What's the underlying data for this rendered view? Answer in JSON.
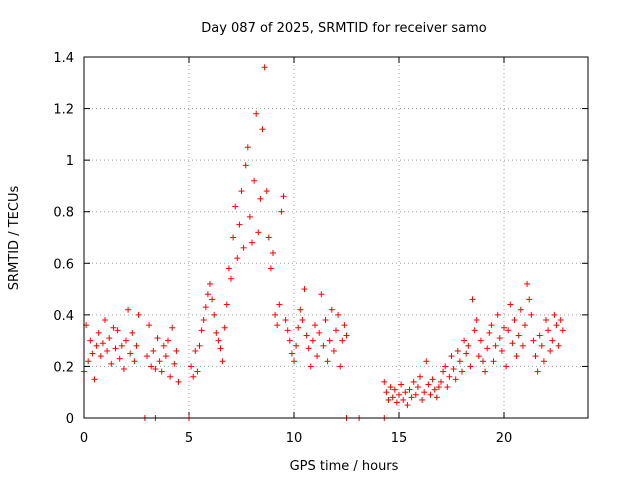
{
  "chart_data": {
    "type": "scatter",
    "title": "Day 087 of 2025, SRMTID for receiver samo",
    "xlabel": "GPS time / hours",
    "ylabel": "SRMTID / TECUs",
    "xlim": [
      0,
      24
    ],
    "ylim": [
      0,
      1.4
    ],
    "xticks": [
      0,
      5,
      10,
      15,
      20
    ],
    "yticks": [
      0,
      0.2,
      0.4,
      0.6,
      0.8,
      1.0,
      1.2,
      1.4
    ],
    "xtick_labels": [
      "0",
      "5",
      "10",
      "15",
      "20"
    ],
    "ytick_labels": [
      "0",
      "0.2",
      "0.4",
      "0.6",
      "0.8",
      "1",
      "1.2",
      "1.4"
    ],
    "grid": true,
    "marker": "+",
    "marker_color": "#ff0000",
    "series": [
      {
        "name": "SRMTID",
        "x": [
          0.0,
          0.1,
          0.2,
          0.3,
          0.4,
          0.5,
          0.6,
          0.7,
          0.8,
          0.9,
          1.0,
          1.1,
          1.2,
          1.3,
          1.4,
          1.5,
          1.6,
          1.7,
          1.8,
          1.9,
          2.0,
          2.1,
          2.2,
          2.3,
          2.4,
          2.5,
          2.6,
          3.0,
          3.1,
          3.2,
          3.3,
          3.4,
          3.5,
          3.6,
          3.7,
          3.8,
          3.9,
          4.0,
          4.1,
          4.2,
          4.3,
          4.4,
          4.5,
          5.1,
          5.2,
          5.3,
          5.4,
          5.5,
          5.6,
          5.7,
          5.8,
          5.9,
          6.0,
          6.1,
          6.2,
          6.3,
          6.4,
          6.5,
          6.6,
          6.7,
          6.8,
          6.9,
          7.0,
          7.1,
          7.2,
          7.3,
          7.4,
          7.5,
          7.6,
          7.7,
          7.8,
          7.9,
          8.0,
          8.1,
          8.2,
          8.3,
          8.4,
          8.5,
          8.6,
          8.7,
          8.8,
          8.9,
          9.0,
          9.1,
          9.2,
          9.3,
          9.4,
          9.5,
          9.6,
          9.7,
          9.8,
          9.9,
          10.0,
          10.1,
          10.2,
          10.3,
          10.4,
          10.5,
          10.6,
          10.7,
          10.8,
          10.9,
          11.0,
          11.1,
          11.2,
          11.3,
          11.4,
          11.5,
          11.6,
          11.7,
          11.8,
          11.9,
          12.0,
          12.1,
          12.2,
          12.3,
          12.4,
          12.5,
          14.3,
          14.4,
          14.5,
          14.6,
          14.7,
          14.8,
          14.9,
          15.0,
          15.1,
          15.2,
          15.3,
          15.4,
          15.5,
          15.6,
          15.7,
          15.8,
          15.9,
          16.0,
          16.1,
          16.2,
          16.3,
          16.4,
          16.5,
          16.6,
          16.7,
          16.8,
          16.9,
          17.0,
          17.1,
          17.2,
          17.3,
          17.4,
          17.5,
          17.6,
          17.7,
          17.8,
          17.9,
          18.0,
          18.1,
          18.2,
          18.3,
          18.4,
          18.5,
          18.6,
          18.7,
          18.8,
          18.9,
          19.0,
          19.1,
          19.2,
          19.3,
          19.4,
          19.5,
          19.6,
          19.7,
          19.8,
          19.9,
          20.0,
          20.1,
          20.2,
          20.3,
          20.4,
          20.5,
          20.6,
          20.7,
          20.8,
          20.9,
          21.0,
          21.1,
          21.2,
          21.3,
          21.4,
          21.5,
          21.6,
          21.7,
          21.8,
          21.9,
          22.0,
          22.1,
          22.2,
          22.3,
          22.4,
          22.5,
          22.6,
          22.7,
          22.8,
          2.9,
          3.4,
          5.0,
          12.5,
          13.1,
          14.3
        ],
        "y": [
          0.18,
          0.36,
          0.22,
          0.3,
          0.25,
          0.15,
          0.28,
          0.33,
          0.24,
          0.29,
          0.38,
          0.26,
          0.31,
          0.21,
          0.35,
          0.27,
          0.34,
          0.23,
          0.28,
          0.19,
          0.3,
          0.42,
          0.25,
          0.33,
          0.22,
          0.28,
          0.4,
          0.24,
          0.36,
          0.2,
          0.26,
          0.19,
          0.31,
          0.22,
          0.18,
          0.28,
          0.24,
          0.3,
          0.16,
          0.35,
          0.21,
          0.26,
          0.14,
          0.2,
          0.16,
          0.26,
          0.18,
          0.28,
          0.34,
          0.38,
          0.43,
          0.48,
          0.52,
          0.46,
          0.4,
          0.33,
          0.3,
          0.27,
          0.22,
          0.35,
          0.44,
          0.58,
          0.54,
          0.7,
          0.82,
          0.62,
          0.75,
          0.88,
          0.66,
          0.98,
          1.05,
          0.78,
          0.68,
          0.92,
          1.18,
          0.72,
          0.85,
          1.12,
          1.36,
          0.88,
          0.7,
          0.58,
          0.64,
          0.4,
          0.36,
          0.44,
          0.8,
          0.86,
          0.38,
          0.34,
          0.3,
          0.25,
          0.22,
          0.28,
          0.35,
          0.42,
          0.38,
          0.5,
          0.32,
          0.27,
          0.2,
          0.3,
          0.36,
          0.24,
          0.33,
          0.48,
          0.28,
          0.38,
          0.22,
          0.3,
          0.42,
          0.26,
          0.34,
          0.4,
          0.2,
          0.3,
          0.36,
          0.32,
          0.14,
          0.1,
          0.07,
          0.12,
          0.08,
          0.11,
          0.06,
          0.09,
          0.13,
          0.07,
          0.1,
          0.05,
          0.11,
          0.08,
          0.14,
          0.09,
          0.12,
          0.16,
          0.07,
          0.1,
          0.22,
          0.13,
          0.09,
          0.15,
          0.11,
          0.08,
          0.12,
          0.14,
          0.18,
          0.2,
          0.12,
          0.16,
          0.24,
          0.19,
          0.15,
          0.26,
          0.22,
          0.18,
          0.3,
          0.25,
          0.28,
          0.2,
          0.46,
          0.34,
          0.38,
          0.24,
          0.3,
          0.22,
          0.18,
          0.27,
          0.33,
          0.36,
          0.22,
          0.28,
          0.4,
          0.31,
          0.26,
          0.35,
          0.2,
          0.34,
          0.44,
          0.29,
          0.38,
          0.24,
          0.32,
          0.42,
          0.28,
          0.36,
          0.52,
          0.46,
          0.4,
          0.3,
          0.24,
          0.18,
          0.32,
          0.28,
          0.22,
          0.38,
          0.34,
          0.26,
          0.3,
          0.4,
          0.36,
          0.28,
          0.38,
          0.34,
          0.0,
          0.0,
          0.0,
          0.0,
          0.0,
          0.0
        ]
      }
    ]
  }
}
